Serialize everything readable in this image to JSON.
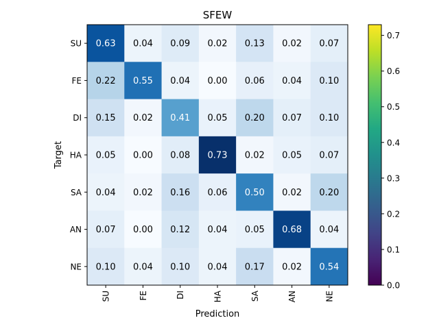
{
  "chart_data": {
    "type": "heatmap",
    "title": "SFEW",
    "xlabel": "Prediction",
    "ylabel": "Target",
    "x_categories": [
      "SU",
      "FE",
      "DI",
      "HA",
      "SA",
      "AN",
      "NE"
    ],
    "y_categories": [
      "SU",
      "FE",
      "DI",
      "HA",
      "SA",
      "AN",
      "NE"
    ],
    "values": [
      [
        0.63,
        0.04,
        0.09,
        0.02,
        0.13,
        0.02,
        0.07
      ],
      [
        0.22,
        0.55,
        0.04,
        0.0,
        0.06,
        0.04,
        0.1
      ],
      [
        0.15,
        0.02,
        0.41,
        0.05,
        0.2,
        0.07,
        0.1
      ],
      [
        0.05,
        0.0,
        0.08,
        0.73,
        0.02,
        0.05,
        0.07
      ],
      [
        0.04,
        0.02,
        0.16,
        0.06,
        0.5,
        0.02,
        0.2
      ],
      [
        0.07,
        0.0,
        0.12,
        0.04,
        0.05,
        0.68,
        0.04
      ],
      [
        0.1,
        0.04,
        0.1,
        0.04,
        0.17,
        0.02,
        0.54
      ]
    ],
    "cell_colormap": "Blues",
    "value_range": [
      0,
      0.73
    ],
    "colorbar": {
      "colormap": "viridis",
      "range": [
        0,
        0.73
      ],
      "ticks": [
        "0.0",
        "0.1",
        "0.2",
        "0.3",
        "0.4",
        "0.5",
        "0.6",
        "0.7"
      ],
      "tick_values": [
        0,
        0.1,
        0.2,
        0.3,
        0.4,
        0.5,
        0.6,
        0.7
      ]
    }
  }
}
